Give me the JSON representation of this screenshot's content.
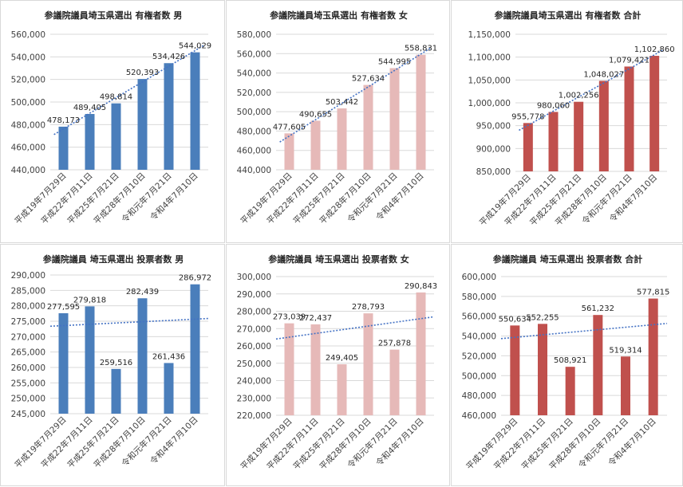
{
  "chart_data": [
    {
      "type": "bar",
      "title": "参議院議員埼玉県選出 有権者数 男",
      "categories": [
        "平成19年7月29日",
        "平成22年7月11日",
        "平成25年7月21日",
        "平成28年7月10日",
        "令和元年7月21日",
        "令和4年7月10日"
      ],
      "values": [
        478173,
        489405,
        498814,
        520393,
        534426,
        544029
      ],
      "data_labels": [
        "478,173",
        "489,405",
        "498,814",
        "520,393",
        "534,426",
        "544,029"
      ],
      "ylim": [
        440000,
        560000
      ],
      "yticks": [
        "440,000",
        "460,000",
        "480,000",
        "500,000",
        "520,000",
        "540,000",
        "560,000"
      ],
      "trendline": "linear",
      "color": "#4a7ebb",
      "grid": true
    },
    {
      "type": "bar",
      "title": "参議院議員埼玉県選出 有権者数 女",
      "categories": [
        "平成19年7月29日",
        "平成22年7月11日",
        "平成25年7月21日",
        "平成28年7月10日",
        "令和元年7月21日",
        "令和4年7月10日"
      ],
      "values": [
        477605,
        490655,
        503442,
        527634,
        544995,
        558831
      ],
      "data_labels": [
        "477,605",
        "490,655",
        "503,442",
        "527,634",
        "544,995",
        "558,831"
      ],
      "ylim": [
        440000,
        580000
      ],
      "yticks": [
        "440,000",
        "460,000",
        "480,000",
        "500,000",
        "520,000",
        "540,000",
        "560,000",
        "580,000"
      ],
      "trendline": "linear",
      "color": "#e6b9b8",
      "grid": true
    },
    {
      "type": "bar",
      "title": "参議院議員埼玉県選出 有権者数 合計",
      "categories": [
        "平成19年7月29日",
        "平成22年7月11日",
        "平成25年7月21日",
        "平成28年7月10日",
        "令和元年7月21日",
        "令和4年7月10日"
      ],
      "values": [
        955778,
        980060,
        1002256,
        1048027,
        1079421,
        1102860
      ],
      "data_labels": [
        "955,778",
        "980,060",
        "1,002,256",
        "1,048,027",
        "1,079,421",
        "1,102,860"
      ],
      "ylim": [
        850000,
        1150000
      ],
      "yticks": [
        "850,000",
        "900,000",
        "950,000",
        "1,000,000",
        "1,050,000",
        "1,100,000",
        "1,150,000"
      ],
      "trendline": "linear",
      "color": "#c0504d",
      "grid": true
    },
    {
      "type": "bar",
      "title": "参議院議員 埼玉県選出 投票者数 男",
      "categories": [
        "平成19年7月29日",
        "平成22年7月11日",
        "平成25年7月21日",
        "平成28年7月10日",
        "令和元年7月21日",
        "令和4年7月10日"
      ],
      "values": [
        277595,
        279818,
        259516,
        282439,
        261436,
        286972
      ],
      "data_labels": [
        "277,595",
        "279,818",
        "259,516",
        "282,439",
        "261,436",
        "286,972"
      ],
      "ylim": [
        245000,
        290000
      ],
      "yticks": [
        "245,000",
        "250,000",
        "255,000",
        "260,000",
        "265,000",
        "270,000",
        "275,000",
        "280,000",
        "285,000",
        "290,000"
      ],
      "trendline": "linear",
      "color": "#4a7ebb",
      "grid": true
    },
    {
      "type": "bar",
      "title": "参議院議員 埼玉県選出 投票者数 女",
      "categories": [
        "平成19年7月29日",
        "平成22年7月11日",
        "平成25年7月21日",
        "平成28年7月10日",
        "令和元年7月21日",
        "令和4年7月10日"
      ],
      "values": [
        273039,
        272437,
        249405,
        278793,
        257878,
        290843
      ],
      "data_labels": [
        "273,039",
        "272,437",
        "249,405",
        "278,793",
        "257,878",
        "290,843"
      ],
      "ylim": [
        220000,
        300000
      ],
      "yticks": [
        "220,000",
        "230,000",
        "240,000",
        "250,000",
        "260,000",
        "270,000",
        "280,000",
        "290,000",
        "300,000"
      ],
      "trendline": "linear",
      "color": "#e6b9b8",
      "grid": true
    },
    {
      "type": "bar",
      "title": "参議院議員 埼玉県選出 投票者数 合計",
      "categories": [
        "平成19年7月29日",
        "平成22年7月11日",
        "平成25年7月21日",
        "平成28年7月10日",
        "令和元年7月21日",
        "令和4年7月10日"
      ],
      "values": [
        550634,
        552255,
        508921,
        561232,
        519314,
        577815
      ],
      "data_labels": [
        "550,634",
        "552,255",
        "508,921",
        "561,232",
        "519,314",
        "577,815"
      ],
      "ylim": [
        460000,
        600000
      ],
      "yticks": [
        "460,000",
        "480,000",
        "500,000",
        "520,000",
        "540,000",
        "560,000",
        "580,000",
        "600,000"
      ],
      "trendline": "linear",
      "color": "#c0504d",
      "grid": true
    }
  ]
}
